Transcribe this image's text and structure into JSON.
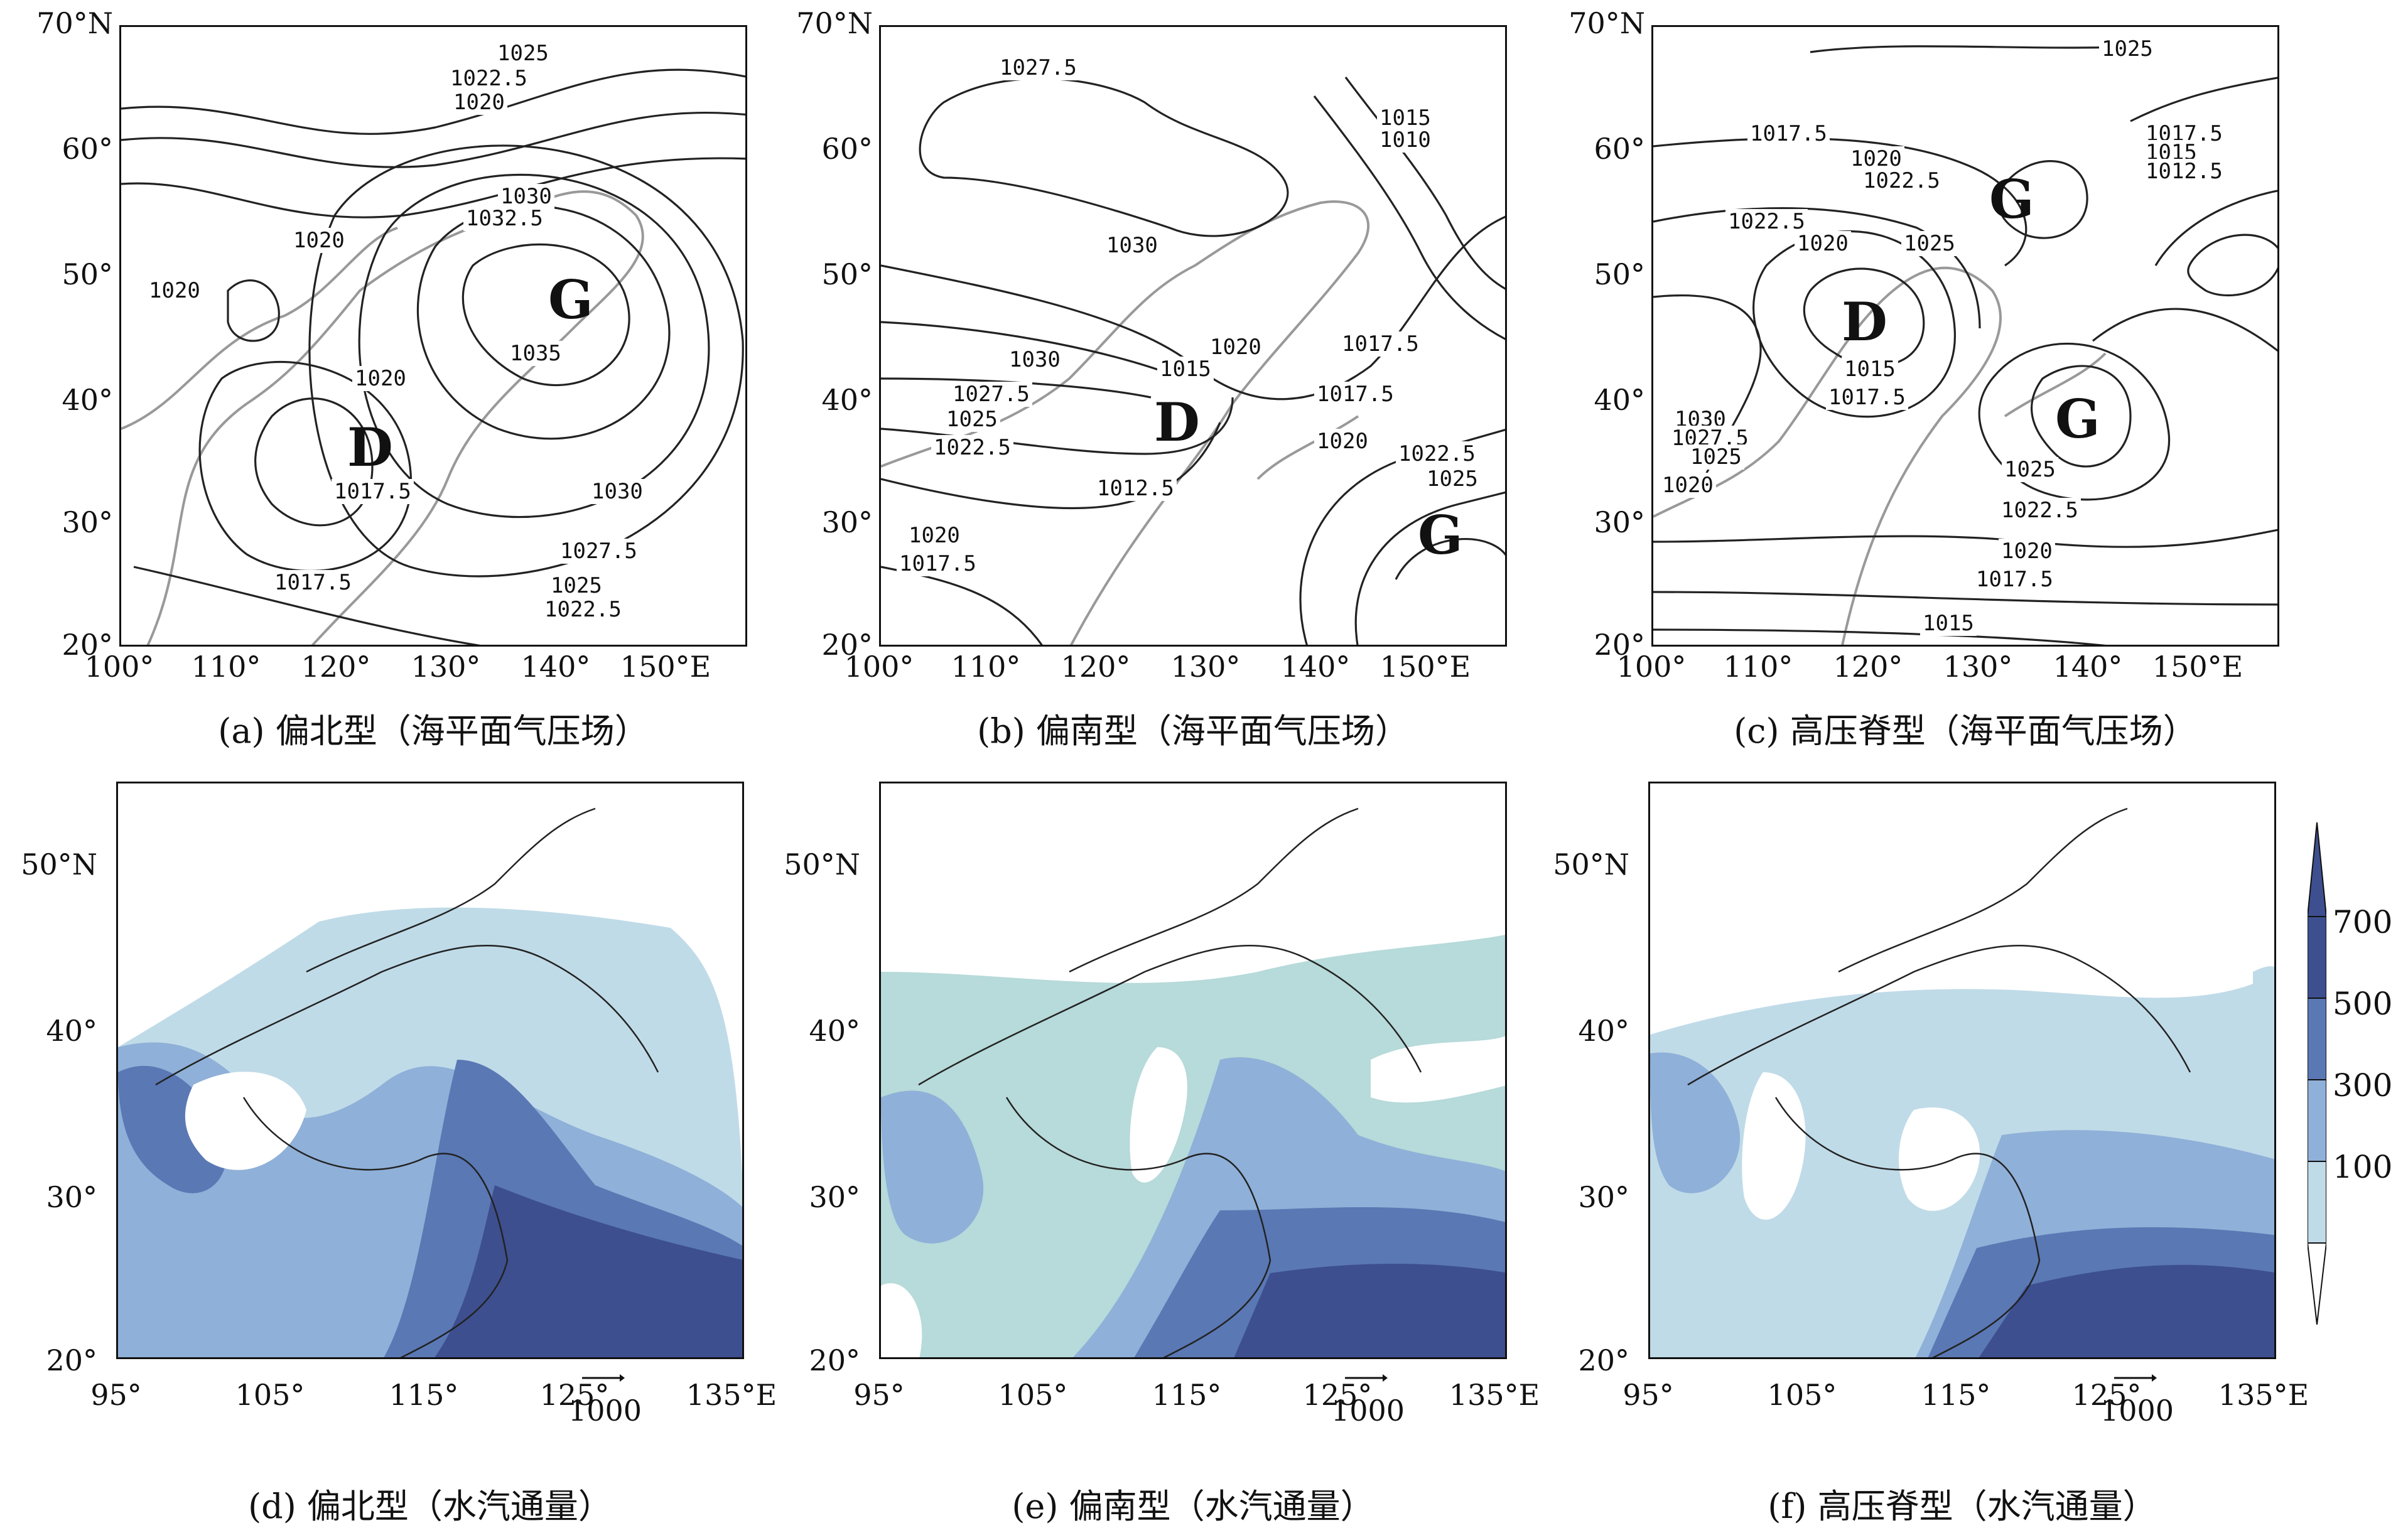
{
  "top_row": {
    "y_ticks": [
      "70°N",
      "60°",
      "50°",
      "40°",
      "30°",
      "20°"
    ],
    "x_ticks": [
      "100°",
      "110°",
      "120°",
      "130°",
      "140°",
      "150°E"
    ],
    "panels": [
      {
        "caption": "(a) 偏北型（海平面气压场）",
        "markers": [
          {
            "text": "G"
          },
          {
            "text": "D"
          }
        ],
        "contour_labels": [
          "1025",
          "1022.5",
          "1020",
          "1020",
          "1020",
          "1030",
          "1032.5",
          "1035",
          "1020",
          "1017.5",
          "1030",
          "1027.5",
          "1025",
          "1022.5",
          "1017.5"
        ]
      },
      {
        "caption": "(b) 偏南型（海平面气压场）",
        "markers": [
          {
            "text": "D"
          },
          {
            "text": "G"
          }
        ],
        "contour_labels": [
          "1027.5",
          "1015",
          "1010",
          "1030",
          "1030",
          "1020",
          "1015",
          "1017.5",
          "1017.5",
          "1027.5",
          "1025",
          "1022.5",
          "1020",
          "1022.5",
          "1025",
          "1012.5",
          "1020",
          "1017.5"
        ]
      },
      {
        "caption": "(c) 高压脊型（海平面气压场）",
        "markers": [
          {
            "text": "G"
          },
          {
            "text": "D"
          },
          {
            "text": "G"
          }
        ],
        "contour_labels": [
          "1025",
          "1017.5",
          "1020",
          "1022.5",
          "1017.5",
          "1015",
          "1012.5",
          "1022.5",
          "1020",
          "1025",
          "1015",
          "1017.5",
          "1030",
          "1027.5",
          "1025",
          "1020",
          "1025",
          "1022.5",
          "1020",
          "1017.5",
          "1015"
        ]
      }
    ]
  },
  "bottom_row": {
    "y_ticks": [
      "50°N",
      "40°",
      "30°",
      "20°"
    ],
    "x_ticks": [
      "95°",
      "105°",
      "115°",
      "125°",
      "135°E"
    ],
    "reference_vector": "1000",
    "panels": [
      {
        "caption": "(d) 偏北型（水汽通量）"
      },
      {
        "caption": "(e) 偏南型（水汽通量）"
      },
      {
        "caption": "(f) 高压脊型（水汽通量）"
      }
    ]
  },
  "colorbar": {
    "labels": [
      "700",
      "500",
      "300",
      "100"
    ],
    "colors": [
      "#3d4f8f",
      "#5a78b4",
      "#8fb0d8",
      "#c0dbe8",
      "#ffffff"
    ]
  }
}
